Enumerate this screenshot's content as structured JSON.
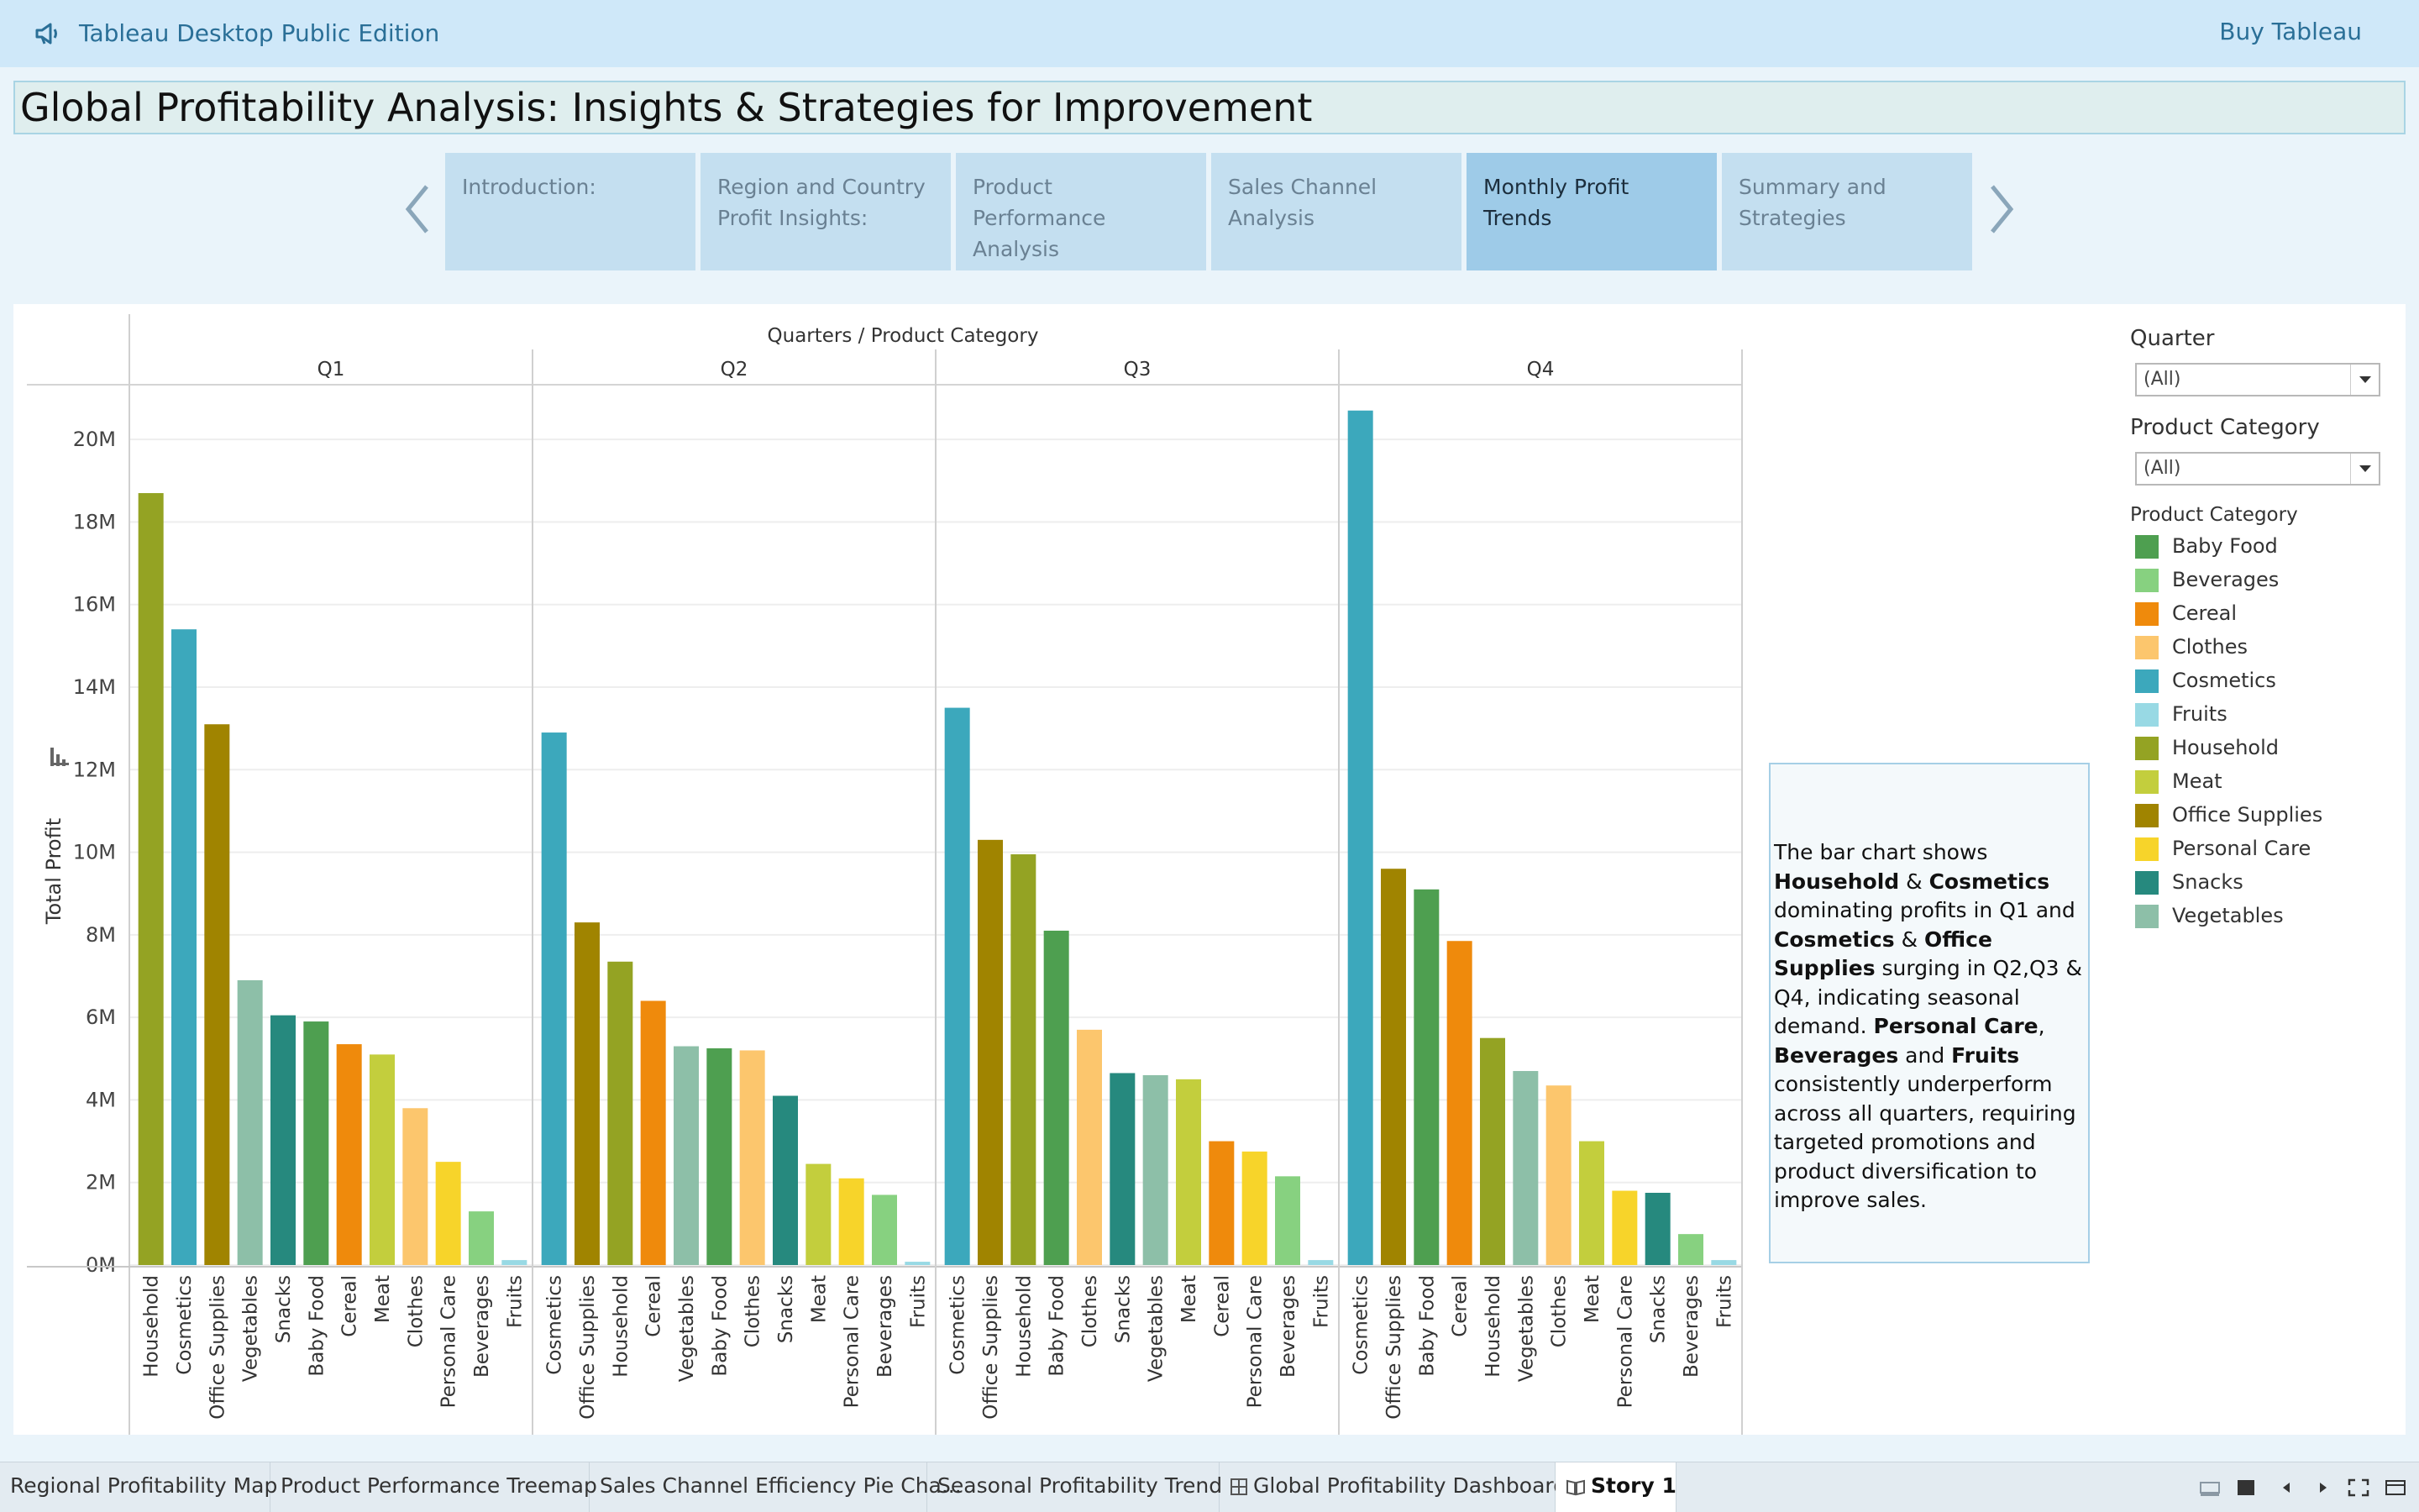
{
  "app": {
    "title": "Tableau Desktop Public Edition",
    "buy_label": "Buy Tableau"
  },
  "story": {
    "title": "Global Profitability Analysis: Insights & Strategies for Improvement",
    "points": [
      {
        "label": "Introduction:",
        "active": false
      },
      {
        "label": "Region and Country Profit Insights:",
        "active": false
      },
      {
        "label": "Product Performance Analysis",
        "active": false
      },
      {
        "label": "Sales Channel Analysis",
        "active": false
      },
      {
        "label": "Monthly Profit Trends",
        "active": true
      },
      {
        "label": "Summary and Strategies",
        "active": false
      }
    ]
  },
  "annotation": {
    "segments": [
      {
        "t": "The bar chart shows ",
        "b": false
      },
      {
        "t": "Household",
        "b": true
      },
      {
        "t": " & ",
        "b": false
      },
      {
        "t": "Cosmetics",
        "b": true
      },
      {
        "t": " dominating profits in Q1 and ",
        "b": false
      },
      {
        "t": "Cosmetics",
        "b": true
      },
      {
        "t": " & ",
        "b": false
      },
      {
        "t": "Office Supplies",
        "b": true
      },
      {
        "t": " surging in Q2,Q3 & Q4, indicating seasonal demand. ",
        "b": false
      },
      {
        "t": "Personal Care",
        "b": true
      },
      {
        "t": ", ",
        "b": false
      },
      {
        "t": "Beverages",
        "b": true
      },
      {
        "t": " and ",
        "b": false
      },
      {
        "t": "Fruits",
        "b": true
      },
      {
        "t": " consistently underperform across all quarters, requiring targeted promotions and product diversification to improve sales.",
        "b": false
      }
    ]
  },
  "filters": {
    "quarter": {
      "label": "Quarter",
      "value": "(All)"
    },
    "category": {
      "label": "Product Category",
      "value": "(All)"
    }
  },
  "legend": {
    "title": "Product Category",
    "items": [
      {
        "name": "Baby Food",
        "color": "#4e9f50"
      },
      {
        "name": "Beverages",
        "color": "#87d180"
      },
      {
        "name": "Cereal",
        "color": "#ef8a0c"
      },
      {
        "name": "Clothes",
        "color": "#fcc66d"
      },
      {
        "name": "Cosmetics",
        "color": "#3ca8bc"
      },
      {
        "name": "Fruits",
        "color": "#98d9e4"
      },
      {
        "name": "Household",
        "color": "#94a323"
      },
      {
        "name": "Meat",
        "color": "#c3ce3d"
      },
      {
        "name": "Office Supplies",
        "color": "#a08400"
      },
      {
        "name": "Personal Care",
        "color": "#f7d42a"
      },
      {
        "name": "Snacks",
        "color": "#26897e"
      },
      {
        "name": "Vegetables",
        "color": "#8dbfa8"
      }
    ]
  },
  "chart_data": {
    "type": "bar",
    "header": "Quarters  /  Product Category",
    "ylabel": "Total Profit",
    "ylim": [
      0,
      21000000
    ],
    "yticks": [
      0,
      2000000,
      4000000,
      6000000,
      8000000,
      10000000,
      12000000,
      14000000,
      16000000,
      18000000,
      20000000
    ],
    "ytick_labels": [
      "0M",
      "2M",
      "4M",
      "6M",
      "8M",
      "10M",
      "12M",
      "14M",
      "16M",
      "18M",
      "20M"
    ],
    "grid": true,
    "panels": [
      {
        "quarter": "Q1",
        "bars": [
          {
            "category": "Household",
            "value": 18700000
          },
          {
            "category": "Cosmetics",
            "value": 15400000
          },
          {
            "category": "Office Supplies",
            "value": 13100000
          },
          {
            "category": "Vegetables",
            "value": 6900000
          },
          {
            "category": "Snacks",
            "value": 6050000
          },
          {
            "category": "Baby Food",
            "value": 5900000
          },
          {
            "category": "Cereal",
            "value": 5350000
          },
          {
            "category": "Meat",
            "value": 5100000
          },
          {
            "category": "Clothes",
            "value": 3800000
          },
          {
            "category": "Personal Care",
            "value": 2500000
          },
          {
            "category": "Beverages",
            "value": 1300000
          },
          {
            "category": "Fruits",
            "value": 120000
          }
        ]
      },
      {
        "quarter": "Q2",
        "bars": [
          {
            "category": "Cosmetics",
            "value": 12900000
          },
          {
            "category": "Office Supplies",
            "value": 8300000
          },
          {
            "category": "Household",
            "value": 7350000
          },
          {
            "category": "Cereal",
            "value": 6400000
          },
          {
            "category": "Vegetables",
            "value": 5300000
          },
          {
            "category": "Baby Food",
            "value": 5250000
          },
          {
            "category": "Clothes",
            "value": 5200000
          },
          {
            "category": "Snacks",
            "value": 4100000
          },
          {
            "category": "Meat",
            "value": 2450000
          },
          {
            "category": "Personal Care",
            "value": 2100000
          },
          {
            "category": "Beverages",
            "value": 1700000
          },
          {
            "category": "Fruits",
            "value": 80000
          }
        ]
      },
      {
        "quarter": "Q3",
        "bars": [
          {
            "category": "Cosmetics",
            "value": 13500000
          },
          {
            "category": "Office Supplies",
            "value": 10300000
          },
          {
            "category": "Household",
            "value": 9950000
          },
          {
            "category": "Baby Food",
            "value": 8100000
          },
          {
            "category": "Clothes",
            "value": 5700000
          },
          {
            "category": "Snacks",
            "value": 4650000
          },
          {
            "category": "Vegetables",
            "value": 4600000
          },
          {
            "category": "Meat",
            "value": 4500000
          },
          {
            "category": "Cereal",
            "value": 3000000
          },
          {
            "category": "Personal Care",
            "value": 2750000
          },
          {
            "category": "Beverages",
            "value": 2150000
          },
          {
            "category": "Fruits",
            "value": 120000
          }
        ]
      },
      {
        "quarter": "Q4",
        "bars": [
          {
            "category": "Cosmetics",
            "value": 20700000
          },
          {
            "category": "Office Supplies",
            "value": 9600000
          },
          {
            "category": "Baby Food",
            "value": 9100000
          },
          {
            "category": "Cereal",
            "value": 7850000
          },
          {
            "category": "Household",
            "value": 5500000
          },
          {
            "category": "Vegetables",
            "value": 4700000
          },
          {
            "category": "Clothes",
            "value": 4350000
          },
          {
            "category": "Meat",
            "value": 3000000
          },
          {
            "category": "Personal Care",
            "value": 1800000
          },
          {
            "category": "Snacks",
            "value": 1750000
          },
          {
            "category": "Beverages",
            "value": 750000
          },
          {
            "category": "Fruits",
            "value": 120000
          }
        ]
      }
    ]
  },
  "bottom_tabs": [
    {
      "label": "Regional Profitability Map",
      "icon": "",
      "active": false
    },
    {
      "label": "Product Performance Treemap",
      "icon": "",
      "active": false
    },
    {
      "label": "Sales Channel Efficiency Pie Cha...",
      "icon": "",
      "active": false
    },
    {
      "label": "Seasonal Profitability Trend",
      "icon": "",
      "active": false
    },
    {
      "label": "Global Profitability Dashboard",
      "icon": "dashboard-icon",
      "active": false
    },
    {
      "label": "Story 1",
      "icon": "story-icon",
      "active": true
    }
  ]
}
